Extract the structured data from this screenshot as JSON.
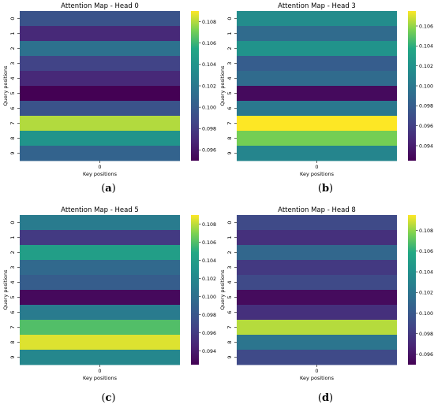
{
  "chart_data": [
    {
      "type": "heatmap",
      "title": "Attention Map - Head 0",
      "xlabel": "Key positions",
      "ylabel": "Query positions",
      "x_tick_labels": [
        "0"
      ],
      "y_tick_labels": [
        "0",
        "1",
        "2",
        "3",
        "4",
        "5",
        "6",
        "7",
        "8",
        "9"
      ],
      "values": [
        0.0995,
        0.097,
        0.1015,
        0.0985,
        0.097,
        0.095,
        0.0995,
        0.108,
        0.104,
        0.1005
      ],
      "colorbar_ticks": [
        "0.096",
        "0.098",
        "0.100",
        "0.102",
        "0.104",
        "0.106",
        "0.108"
      ],
      "vmin": 0.095,
      "vmax": 0.109,
      "colormap": "viridis",
      "caption": "a"
    },
    {
      "type": "heatmap",
      "title": "Attention Map - Head 3",
      "xlabel": "Key positions",
      "ylabel": "Query positions",
      "x_tick_labels": [
        "0"
      ],
      "y_tick_labels": [
        "0",
        "1",
        "2",
        "3",
        "4",
        "5",
        "6",
        "7",
        "8",
        "9"
      ],
      "values": [
        0.1015,
        0.099,
        0.102,
        0.098,
        0.099,
        0.093,
        0.1,
        0.1075,
        0.1055,
        0.101
      ],
      "colorbar_ticks": [
        "0.094",
        "0.096",
        "0.098",
        "0.100",
        "0.102",
        "0.104",
        "0.106"
      ],
      "vmin": 0.0925,
      "vmax": 0.1075,
      "colormap": "viridis",
      "caption": "b"
    },
    {
      "type": "heatmap",
      "title": "Attention Map - Head 5",
      "xlabel": "Key positions",
      "ylabel": "Query positions",
      "x_tick_labels": [
        "0"
      ],
      "y_tick_labels": [
        "0",
        "1",
        "2",
        "3",
        "4",
        "5",
        "6",
        "7",
        "8",
        "9"
      ],
      "values": [
        0.101,
        0.096,
        0.104,
        0.0995,
        0.0985,
        0.093,
        0.101,
        0.106,
        0.1085,
        0.102
      ],
      "colorbar_ticks": [
        "0.094",
        "0.096",
        "0.098",
        "0.100",
        "0.102",
        "0.104",
        "0.106",
        "0.108"
      ],
      "vmin": 0.0925,
      "vmax": 0.109,
      "colormap": "viridis",
      "caption": "c"
    },
    {
      "type": "heatmap",
      "title": "Attention Map - Head 8",
      "xlabel": "Key positions",
      "ylabel": "Query positions",
      "x_tick_labels": [
        "0"
      ],
      "y_tick_labels": [
        "0",
        "1",
        "2",
        "3",
        "4",
        "5",
        "6",
        "7",
        "8",
        "9"
      ],
      "values": [
        0.099,
        0.0975,
        0.101,
        0.098,
        0.099,
        0.0955,
        0.0975,
        0.1085,
        0.102,
        0.099
      ],
      "colorbar_ticks": [
        "0.096",
        "0.098",
        "0.100",
        "0.102",
        "0.104",
        "0.106",
        "0.108"
      ],
      "vmin": 0.095,
      "vmax": 0.1095,
      "colormap": "viridis",
      "caption": "d"
    }
  ]
}
